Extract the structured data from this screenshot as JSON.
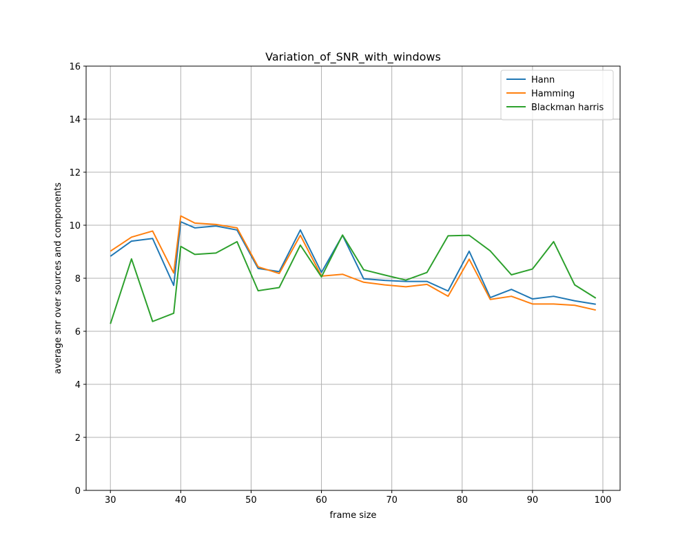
{
  "chart_data": {
    "type": "line",
    "title": "Variation_of_SNR_with_windows",
    "xlabel": "frame size",
    "ylabel": "average snr over sources and components",
    "xlim": [
      26.55,
      102.45
    ],
    "ylim": [
      0,
      16
    ],
    "xticks": [
      30,
      40,
      50,
      60,
      70,
      80,
      90,
      100
    ],
    "yticks": [
      0,
      2,
      4,
      6,
      8,
      10,
      12,
      14,
      16
    ],
    "grid": true,
    "legend_position": "top-right",
    "x": [
      30,
      33,
      36,
      39,
      40,
      42,
      45,
      48,
      51,
      54,
      57,
      60,
      63,
      66,
      69,
      72,
      75,
      78,
      81,
      84,
      87,
      90,
      93,
      96,
      99
    ],
    "series": [
      {
        "name": "Hann",
        "color": "#1f77b4",
        "values": [
          8.83,
          9.4,
          9.5,
          7.73,
          10.13,
          9.9,
          9.97,
          9.82,
          8.37,
          8.25,
          9.82,
          8.22,
          9.62,
          7.98,
          7.92,
          7.88,
          7.88,
          7.52,
          9.02,
          7.27,
          7.58,
          7.22,
          7.32,
          7.15,
          7.02
        ]
      },
      {
        "name": "Hamming",
        "color": "#ff7f0e",
        "values": [
          9.02,
          9.55,
          9.78,
          8.2,
          10.35,
          10.08,
          10.03,
          9.9,
          8.43,
          8.18,
          9.62,
          8.08,
          8.15,
          7.85,
          7.75,
          7.68,
          7.77,
          7.32,
          8.72,
          7.2,
          7.32,
          7.03,
          7.03,
          6.98,
          6.8
        ]
      },
      {
        "name": "Blackman harris",
        "color": "#2ca02c",
        "values": [
          6.28,
          8.73,
          6.37,
          6.68,
          9.2,
          8.9,
          8.95,
          9.38,
          7.53,
          7.65,
          9.25,
          8.05,
          9.63,
          8.32,
          8.12,
          7.93,
          8.22,
          9.6,
          9.62,
          9.03,
          8.13,
          8.35,
          9.38,
          7.75,
          7.25
        ]
      }
    ]
  }
}
